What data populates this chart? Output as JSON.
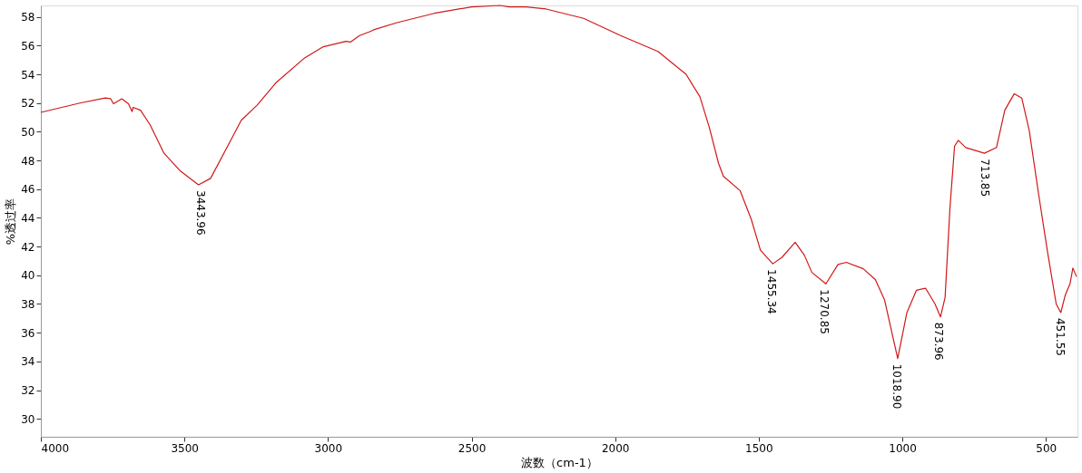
{
  "chart_data": {
    "type": "line",
    "xlabel": "波数（cm-1）",
    "ylabel": "%透过率",
    "xlim": [
      4000,
      390
    ],
    "ylim": [
      28.75,
      58.8
    ],
    "xticks": [
      4000,
      3500,
      3000,
      2500,
      2000,
      1500,
      1000,
      500
    ],
    "yticks": [
      30,
      32,
      34,
      36,
      38,
      40,
      42,
      44,
      46,
      48,
      50,
      52,
      54,
      56,
      58
    ],
    "grid": false,
    "marker": "none",
    "line_style": "solid",
    "x": [
      4000,
      3864,
      3776,
      3757,
      3747,
      3718,
      3695,
      3682,
      3679,
      3653,
      3620,
      3571,
      3516,
      3451,
      3409,
      3344,
      3302,
      3247,
      3182,
      3084,
      3019,
      2938,
      2922,
      2890,
      2857,
      2841,
      2760,
      2630,
      2500,
      2400,
      2370,
      2310,
      2240,
      2110,
      1981,
      1851,
      1753,
      1705,
      1672,
      1640,
      1623,
      1565,
      1526,
      1494,
      1451,
      1419,
      1373,
      1341,
      1315,
      1266,
      1224,
      1195,
      1136,
      1094,
      1062,
      1016,
      984,
      951,
      919,
      886,
      867,
      851,
      834,
      818,
      805,
      779,
      714,
      672,
      643,
      610,
      584,
      558,
      526,
      494,
      464,
      448,
      432,
      416,
      406,
      393
    ],
    "series": [
      {
        "color": "#d01818",
        "values": [
          51.35,
          52.0,
          52.35,
          52.3,
          51.95,
          52.3,
          51.95,
          51.4,
          51.7,
          51.5,
          50.5,
          48.5,
          47.3,
          46.3,
          46.75,
          49.2,
          50.8,
          51.85,
          53.4,
          55.1,
          55.9,
          56.3,
          56.25,
          56.7,
          56.95,
          57.1,
          57.6,
          58.25,
          58.7,
          58.8,
          58.7,
          58.7,
          58.55,
          57.9,
          56.7,
          55.6,
          54.0,
          52.45,
          50.3,
          47.8,
          46.9,
          45.9,
          43.9,
          41.75,
          40.8,
          41.25,
          42.3,
          41.4,
          40.2,
          39.4,
          40.75,
          40.9,
          40.45,
          39.7,
          38.3,
          34.2,
          37.4,
          38.95,
          39.1,
          38.0,
          37.1,
          38.45,
          44.7,
          49.0,
          49.4,
          48.9,
          48.5,
          48.9,
          51.5,
          52.65,
          52.35,
          50.1,
          45.75,
          41.6,
          38.0,
          37.4,
          38.65,
          39.4,
          40.5,
          39.9
        ]
      }
    ],
    "annotations": [
      {
        "text": "3443.96",
        "x": 3443.96,
        "y": 46.3
      },
      {
        "text": "1455.34",
        "x": 1455.34,
        "y": 40.8
      },
      {
        "text": "1270.85",
        "x": 1270.85,
        "y": 39.4
      },
      {
        "text": "1018.90",
        "x": 1018.9,
        "y": 34.2
      },
      {
        "text": "873.96",
        "x": 873.96,
        "y": 37.1
      },
      {
        "text": "713.85",
        "x": 713.85,
        "y": 48.5
      },
      {
        "text": "451.55",
        "x": 451.55,
        "y": 37.4
      }
    ]
  }
}
